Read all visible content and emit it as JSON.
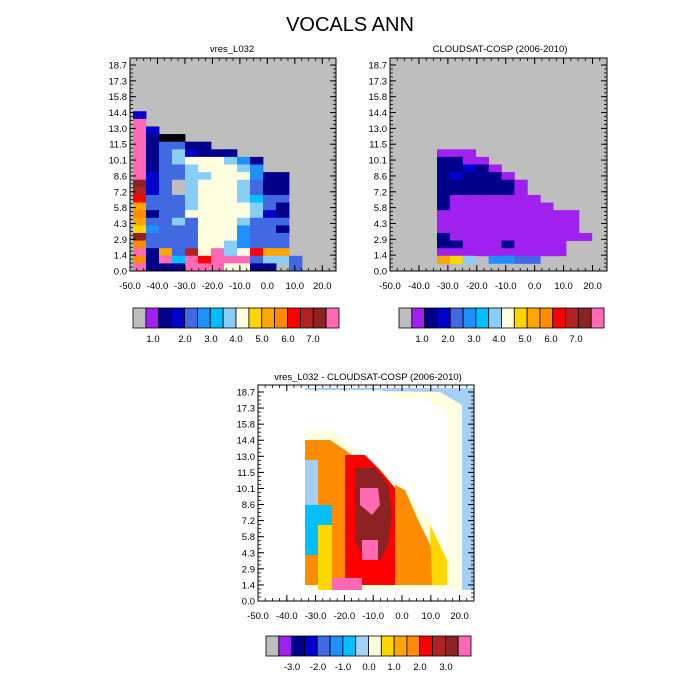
{
  "figure": {
    "title": "VOCALS ANN"
  },
  "colors": {
    "missing": "#bebebe",
    "palette_abs": [
      "#bebebe",
      "#a020f0",
      "#00008b",
      "#0000cd",
      "#4169e1",
      "#1e90ff",
      "#00bfff",
      "#87cefa",
      "#ffffe0",
      "#ffd700",
      "#ffa500",
      "#ff8c00",
      "#ff0000",
      "#b22222",
      "#8b2323",
      "#ff69b4"
    ],
    "palette_diff": [
      "#bebebe",
      "#a020f0",
      "#00008b",
      "#0000cd",
      "#4169e1",
      "#1e90ff",
      "#00bfff",
      "#a6cff5",
      "#ffffe0",
      "#ffd700",
      "#ffa500",
      "#ff8c00",
      "#ff0000",
      "#b22222",
      "#8b2323",
      "#ff69b4"
    ]
  },
  "panels": {
    "p1": {
      "title": "vres_L032",
      "legend_ticks": [
        "1.0",
        "2.0",
        "3.0",
        "4.0",
        "5.0",
        "6.0",
        "7.0"
      ]
    },
    "p2": {
      "title": "CLOUDSAT-COSP (2006-2010)",
      "legend_ticks": [
        "1.0",
        "2.0",
        "3.0",
        "4.0",
        "5.0",
        "6.0",
        "7.0"
      ]
    },
    "p3": {
      "title": "vres_L032 - CLOUDSAT-COSP (2006-2010)",
      "legend_ticks": [
        "-3.0",
        "-2.0",
        "-1.0",
        "0.0",
        "1.0",
        "2.0",
        "3.0"
      ]
    }
  },
  "chart_data": [
    {
      "type": "heatmap",
      "title": "vres_L032",
      "x_range": [
        -50,
        25
      ],
      "x_ticks": [
        "-50.0",
        "-40.0",
        "-30.0",
        "-20.0",
        "-10.0",
        "0.0",
        "10.0",
        "20.0"
      ],
      "y_ticks": [
        "0.0",
        "1.4",
        "2.9",
        "4.3",
        "5.8",
        "7.2",
        "8.6",
        "10.1",
        "11.5",
        "13.0",
        "14.4",
        "15.8",
        "17.3",
        "18.7"
      ],
      "colorbar_ticks": [
        "1.0",
        "2.0",
        "3.0",
        "4.0",
        "5.0",
        "6.0",
        "7.0"
      ],
      "color_index_legend": "0 missing, 1..15 = palette bins",
      "grid": [
        "................",
        "................",
        "................",
        "................",
        "................",
        "................",
        "................",
        "3...............",
        "F...............",
        "F3..............",
        "F2ll............",
        "F24422..........",
        "F2473222........",
        "F247888752......",
        "F244788875......",
        "F34477888522....",
        "E34078887422....",
        "D34078887422....",
        "C44478887644....",
        "A44478888742....",
        "B24488888732....",
        "A44748887444....",
        "954448885442....",
        "E44448885444....",
        "B44448875444....",
        "F2A4D8F78CAA....",
        "B2F6FCFFF4774...",
        "F222FFF8822.4..."
      ]
    },
    {
      "type": "heatmap",
      "title": "CLOUDSAT-COSP (2006-2010)",
      "x_range": [
        -50,
        25
      ],
      "x_ticks": [
        "-50.0",
        "-40.0",
        "-30.0",
        "-20.0",
        "-10.0",
        "0.0",
        "10.0",
        "20.0"
      ],
      "y_ticks": [
        "0.0",
        "1.4",
        "2.9",
        "4.3",
        "5.8",
        "7.2",
        "8.6",
        "10.1",
        "11.5",
        "13.0",
        "14.4",
        "15.8",
        "17.3",
        "18.7"
      ],
      "colorbar_ticks": [
        "1.0",
        "2.0",
        "3.0",
        "4.0",
        "5.0",
        "6.0",
        "7.0"
      ],
      "color_index_legend": "0 missing, 1..15 = palette bins",
      "grid": [
        "................",
        "................",
        "................",
        "................",
        "................",
        "................",
        "................",
        "................",
        "................",
        "................",
        "................",
        "................",
        "111.............",
        "2211............",
        "22321...........",
        "232221..........",
        "2222221.........",
        "2222221.........",
        "21111111........",
        "211111111.......",
        "11111111111.....",
        "11111111111.....",
        "11111111111.....",
        "211111111111....",
        "2211121111......",
        "1111111111......",
        "A97.5544........",
        "................"
      ]
    },
    {
      "type": "heatmap",
      "title": "vres_L032 - CLOUDSAT-COSP (2006-2010)",
      "x_range": [
        -50,
        25
      ],
      "x_ticks": [
        "-50.0",
        "-40.0",
        "-30.0",
        "-20.0",
        "-10.0",
        "0.0",
        "10.0",
        "20.0"
      ],
      "y_ticks": [
        "0.0",
        "1.4",
        "2.9",
        "4.3",
        "5.8",
        "7.2",
        "8.6",
        "10.1",
        "11.5",
        "13.0",
        "14.4",
        "15.8",
        "17.3",
        "18.7"
      ],
      "colorbar_ticks": [
        "-3.0",
        "-2.0",
        "-1.0",
        "0.0",
        "1.0",
        "2.0",
        "3.0"
      ],
      "color_index_legend": "0 missing, 1..15 = palette bins",
      "grid": [
        "..........................",
        "..........................",
        "..........................",
        "..........................",
        "..........................",
        "..........................",
        "..........................",
        "..........................",
        "..........................",
        "..........................",
        "..........................",
        "..........................",
        "..........................",
        "..........................",
        "..........................",
        "..........................",
        "..........................",
        "..........................",
        "..........................",
        "..........................",
        "..........................",
        "..........................",
        "..........................",
        "..........................",
        "..........................",
        "..........................",
        ".........................."
      ]
    }
  ]
}
